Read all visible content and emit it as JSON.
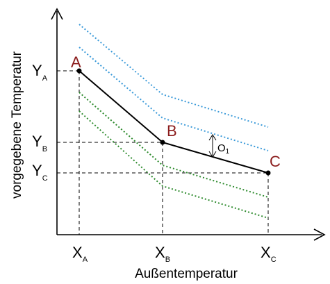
{
  "axes": {
    "x_label": "Außentemperatur",
    "y_label": "vorgegebene Temperatur"
  },
  "x_ticks": [
    {
      "main": "X",
      "sub": "A"
    },
    {
      "main": "X",
      "sub": "B"
    },
    {
      "main": "X",
      "sub": "C"
    }
  ],
  "y_ticks": [
    {
      "main": "Y",
      "sub": "A"
    },
    {
      "main": "Y",
      "sub": "B"
    },
    {
      "main": "Y",
      "sub": "C"
    }
  ],
  "points": [
    {
      "label": "A"
    },
    {
      "label": "B"
    },
    {
      "label": "C"
    }
  ],
  "offset": {
    "main": "O",
    "sub": "1"
  },
  "colors": {
    "main_curve": "#000000",
    "upper_offsets": "#3a9ad9",
    "lower_offsets": "#2e8b2e",
    "point_labels": "#8b1c1c"
  }
}
